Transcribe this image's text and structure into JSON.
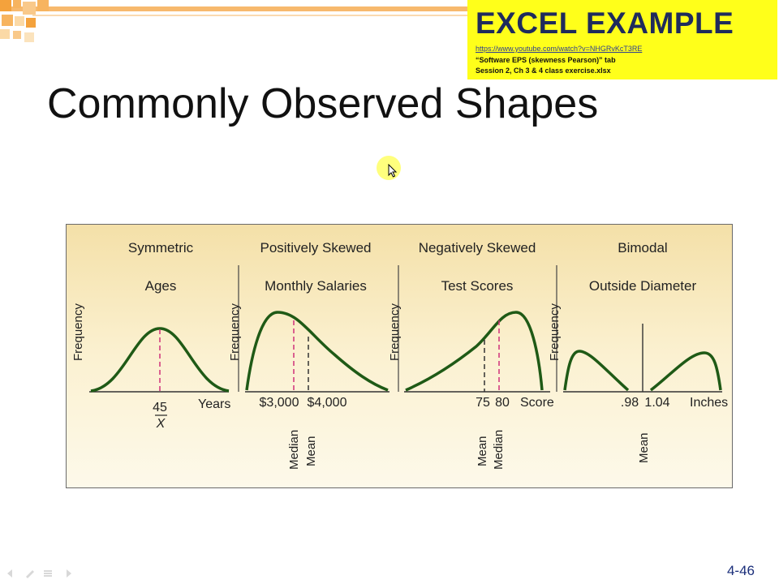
{
  "colors": {
    "accent_orange": "#f4a23c",
    "box_yellow": "#ffff1a",
    "curve_green": "#1f5a16",
    "marker_magenta": "#d0307a",
    "page_number_blue": "#1a2e7a"
  },
  "excel_box": {
    "title": "EXCEL EXAMPLE",
    "link": "https://www.youtube.com/watch?v=NHGRvKcT3RE",
    "line1": "“Software EPS (skewness Pearson)” tab",
    "line2": "Session 2, Ch 3 & 4 class exercise.xlsx"
  },
  "slide": {
    "title": "Commonly Observed Shapes",
    "page_number": "4-46"
  },
  "figure": {
    "frequency_label": "Frequency",
    "panels": [
      {
        "heading": "Symmetric",
        "subheading": "Ages",
        "shape": "symmetric",
        "tick_labels": [
          "45"
        ],
        "mean_symbol": "X",
        "axis_unit": "Years",
        "vertical_labels": []
      },
      {
        "heading": "Positively Skewed",
        "subheading": "Monthly Salaries",
        "shape": "positively-skewed",
        "tick_labels": [
          "$3,000",
          "$4,000"
        ],
        "axis_unit": "",
        "vertical_labels": [
          "Median",
          "Mean"
        ]
      },
      {
        "heading": "Negatively Skewed",
        "subheading": "Test Scores",
        "shape": "negatively-skewed",
        "tick_labels": [
          "75",
          "80"
        ],
        "axis_unit": "Score",
        "vertical_labels": [
          "Mean",
          "Median"
        ]
      },
      {
        "heading": "Bimodal",
        "subheading": "Outside Diameter",
        "shape": "bimodal",
        "tick_labels": [
          ".98",
          "1.04"
        ],
        "axis_unit": "Inches",
        "vertical_labels": [
          "Mean"
        ]
      }
    ]
  },
  "nav_icons": [
    "back-icon",
    "pen-icon",
    "menu-icon",
    "forward-icon"
  ]
}
